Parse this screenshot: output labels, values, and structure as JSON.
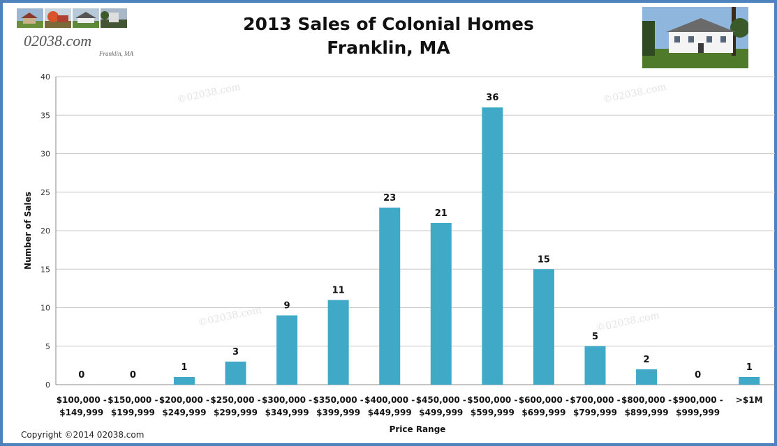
{
  "logo": {
    "text": "02038.com",
    "sub": "Franklin, MA"
  },
  "copyright": "Copyright ©2014 02038.com",
  "watermark": "©02038.com",
  "colors": {
    "bar": "#41a9c8",
    "frame": "#4f81bd",
    "grid": "#c9c9c9"
  },
  "chart_data": {
    "type": "bar",
    "title_line1": "2013 Sales of Colonial Homes",
    "title_line2": "Franklin, MA",
    "xlabel": "Price Range",
    "ylabel": "Number  of Sales",
    "ylim": [
      0,
      40
    ],
    "yticks": [
      0,
      5,
      10,
      15,
      20,
      25,
      30,
      35,
      40
    ],
    "grid": true,
    "categories": [
      [
        "$100,000 -",
        "$149,999"
      ],
      [
        "$150,000 -",
        "$199,999"
      ],
      [
        "$200,000 -",
        "$249,999"
      ],
      [
        "$250,000 -",
        "$299,999"
      ],
      [
        "$300,000 -",
        "$349,999"
      ],
      [
        "$350,000 -",
        "$399,999"
      ],
      [
        "$400,000 -",
        "$449,999"
      ],
      [
        "$450,000 -",
        "$499,999"
      ],
      [
        "$500,000 -",
        "$599,999"
      ],
      [
        "$600,000 -",
        "$699,999"
      ],
      [
        "$700,000 -",
        "$799,999"
      ],
      [
        "$800,000 -",
        "$899,999"
      ],
      [
        "$900,000 -",
        "$999,999"
      ],
      [
        ">$1M"
      ]
    ],
    "values": [
      0,
      0,
      1,
      3,
      9,
      11,
      23,
      21,
      36,
      15,
      5,
      2,
      0,
      1
    ]
  }
}
